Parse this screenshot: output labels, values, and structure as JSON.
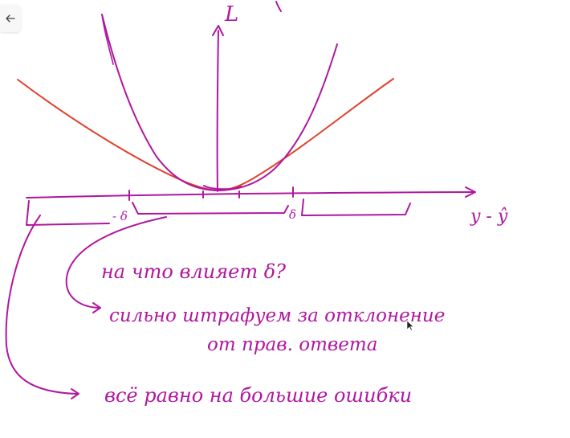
{
  "toolbar": {
    "back_icon": "arrow-left-icon"
  },
  "colors": {
    "pen": "#b0179f",
    "red_pen": "#e0402a",
    "icon": "#444444"
  },
  "diagram": {
    "axis_vertical_label": "L",
    "axis_horizontal_label": "y - ŷ",
    "bracket_left_label": "- δ",
    "bracket_right_label": "δ",
    "question": "на что влияет δ?",
    "note_middle_line1": "сильно штрафуем за отклонение",
    "note_middle_line2": "от прав. ответа",
    "note_bottom": "всё равно на большие ошибки"
  }
}
